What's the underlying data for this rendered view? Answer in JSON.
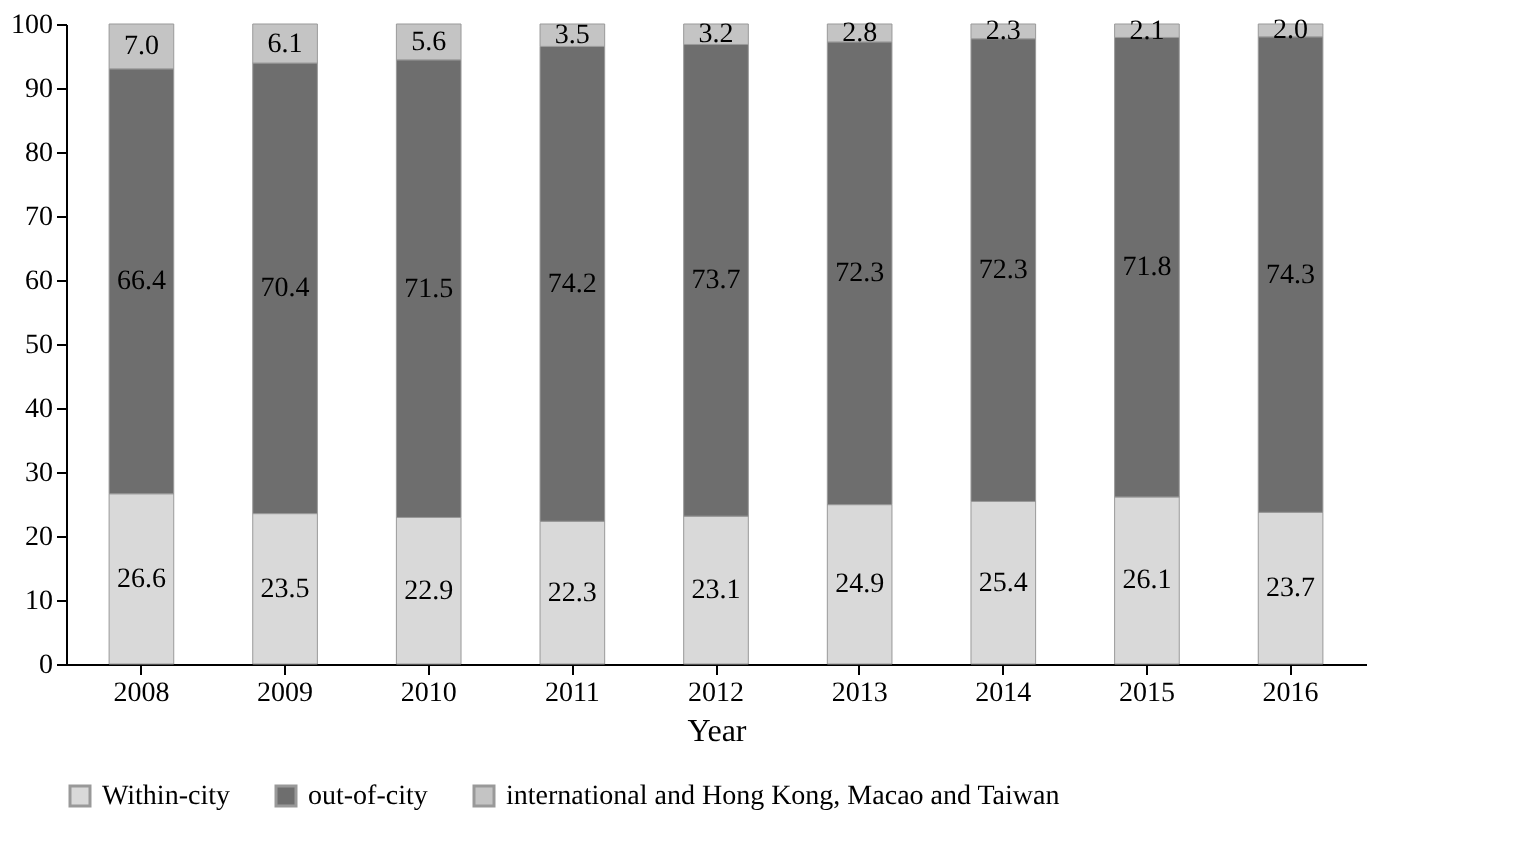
{
  "chart_data": {
    "type": "bar",
    "stacked": true,
    "xlabel": "Year",
    "categories": [
      "2008",
      "2009",
      "2010",
      "2011",
      "2012",
      "2013",
      "2014",
      "2015",
      "2016"
    ],
    "series": [
      {
        "name": "Within-city",
        "color": "#d9d9d9",
        "values": [
          26.6,
          23.5,
          22.9,
          22.3,
          23.1,
          24.9,
          25.4,
          26.1,
          23.7
        ],
        "value_labels": [
          "26.6",
          "23.5",
          "22.9",
          "22.3",
          "23.1",
          "24.9",
          "25.4",
          "26.1",
          "23.7"
        ]
      },
      {
        "name": "out-of-city",
        "color": "#6e6e6e",
        "values": [
          66.4,
          70.4,
          71.5,
          74.2,
          73.7,
          72.3,
          72.3,
          71.8,
          74.3
        ],
        "value_labels": [
          "66.4",
          "70.4",
          "71.5",
          "74.2",
          "73.7",
          "72.3",
          "72.3",
          "71.8",
          "74.3"
        ]
      },
      {
        "name": "international and Hong Kong, Macao and Taiwan",
        "color": "#c4c4c4",
        "values": [
          7.0,
          6.1,
          5.6,
          3.5,
          3.2,
          2.8,
          2.3,
          2.1,
          2.0
        ],
        "value_labels": [
          "7.0",
          "6.1",
          "5.6",
          "3.5",
          "3.2",
          "2.8",
          "2.3",
          "2.1",
          "2.0"
        ]
      }
    ],
    "ylim": [
      0,
      100
    ],
    "yticks": [
      0,
      10,
      20,
      30,
      40,
      50,
      60,
      70,
      80,
      90,
      100
    ],
    "grid": false,
    "legend": "bottom"
  }
}
